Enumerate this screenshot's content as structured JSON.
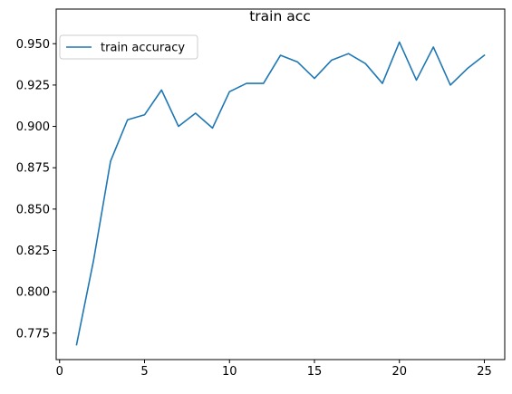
{
  "chart_data": {
    "type": "line",
    "title": "train acc",
    "xlabel": "",
    "ylabel": "",
    "xlim": [
      -0.2,
      26.2
    ],
    "ylim": [
      0.759,
      0.96
    ],
    "xticks": [
      0,
      5,
      10,
      15,
      20,
      25
    ],
    "yticks": [
      0.775,
      0.8,
      0.825,
      0.85,
      0.875,
      0.9,
      0.925,
      0.95
    ],
    "xtick_labels": [
      "0",
      "5",
      "10",
      "15",
      "20",
      "25"
    ],
    "ytick_labels": [
      "0.775",
      "0.800",
      "0.825",
      "0.850",
      "0.875",
      "0.900",
      "0.925",
      "0.950"
    ],
    "grid": false,
    "legend_position": "upper-left",
    "series": [
      {
        "name": "train accuracy",
        "color": "#1f77b4",
        "x": [
          1,
          2,
          3,
          4,
          5,
          6,
          7,
          8,
          9,
          10,
          11,
          12,
          13,
          14,
          15,
          16,
          17,
          18,
          19,
          20,
          21,
          22,
          23,
          24,
          25
        ],
        "y": [
          0.768,
          0.819,
          0.879,
          0.904,
          0.907,
          0.922,
          0.9,
          0.908,
          0.899,
          0.921,
          0.926,
          0.926,
          0.943,
          0.939,
          0.929,
          0.94,
          0.944,
          0.938,
          0.926,
          0.951,
          0.928,
          0.948,
          0.925,
          0.935,
          0.943
        ]
      }
    ]
  }
}
